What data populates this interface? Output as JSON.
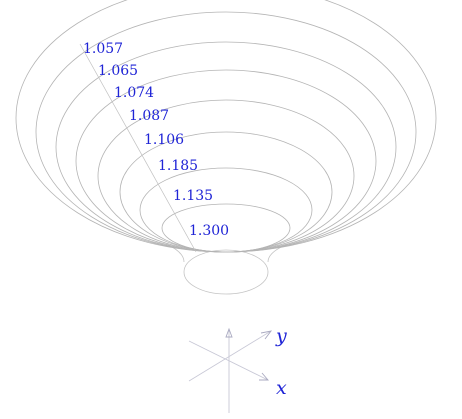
{
  "diagram": {
    "description_type": "nested ellipses (funnel / surface contour view)",
    "ring_labels": [
      "1.057",
      "1.065",
      "1.074",
      "1.087",
      "1.106",
      "1.185",
      "1.135",
      "1.300"
    ],
    "axes": {
      "y_label": "y",
      "x_label": "x"
    },
    "colors": {
      "label": "#1f24d6",
      "ring_stroke": "#b4b4b4",
      "axis_stroke": "#c8c8d6"
    }
  }
}
